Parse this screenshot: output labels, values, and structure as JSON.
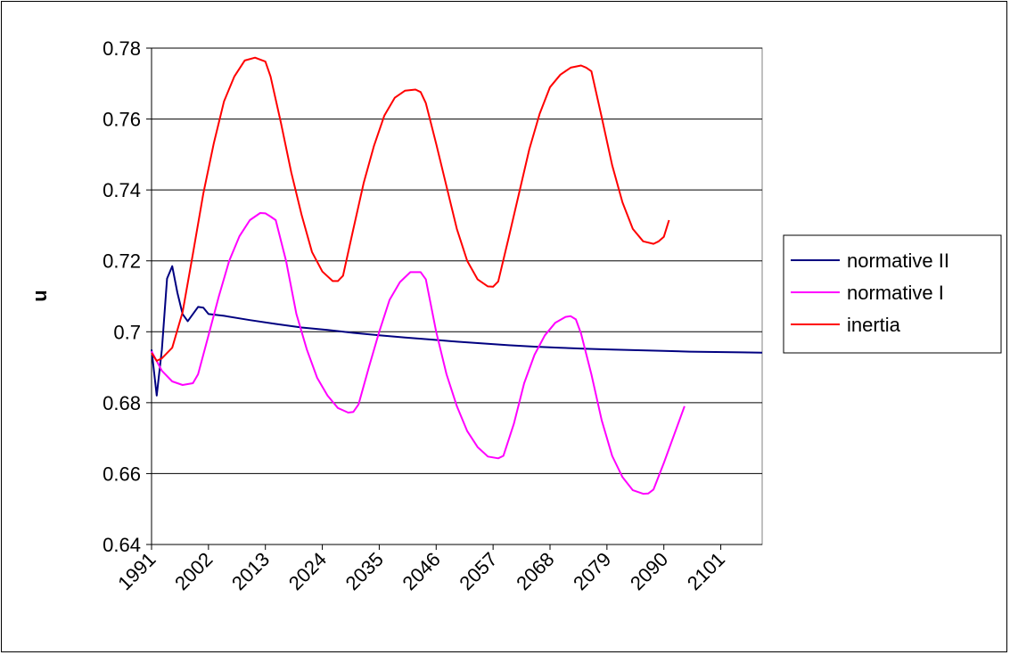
{
  "chart_data": {
    "type": "line",
    "title": "",
    "xlabel": "",
    "ylabel": "u",
    "ylim": [
      0.64,
      0.78
    ],
    "yticks": [
      "0.64",
      "0.66",
      "0.68",
      "0.7",
      "0.72",
      "0.74",
      "0.76",
      "0.78"
    ],
    "xticks": [
      "1991",
      "2002",
      "2013",
      "2024",
      "2035",
      "2046",
      "2057",
      "2068",
      "2079",
      "2090",
      "2101"
    ],
    "xrange": [
      1991,
      2109
    ],
    "grid": "horizontal",
    "legend_position": "right",
    "series": [
      {
        "name": "normative II",
        "color": "#000080",
        "points": [
          [
            1991,
            0.695
          ],
          [
            1992,
            0.682
          ],
          [
            1993,
            0.695
          ],
          [
            1994,
            0.715
          ],
          [
            1995,
            0.7185
          ],
          [
            1996,
            0.711
          ],
          [
            1997,
            0.705
          ],
          [
            1998,
            0.703
          ],
          [
            1999,
            0.705
          ],
          [
            2000,
            0.707
          ],
          [
            2001,
            0.7068
          ],
          [
            2002,
            0.705
          ],
          [
            2005,
            0.7045
          ],
          [
            2010,
            0.7033
          ],
          [
            2015,
            0.7022
          ],
          [
            2020,
            0.7012
          ],
          [
            2025,
            0.7005
          ],
          [
            2030,
            0.6997
          ],
          [
            2035,
            0.699
          ],
          [
            2040,
            0.6984
          ],
          [
            2045,
            0.6978
          ],
          [
            2050,
            0.6972
          ],
          [
            2055,
            0.6967
          ],
          [
            2060,
            0.6962
          ],
          [
            2065,
            0.6958
          ],
          [
            2070,
            0.6955
          ],
          [
            2075,
            0.6952
          ],
          [
            2080,
            0.695
          ],
          [
            2085,
            0.6948
          ],
          [
            2090,
            0.6946
          ],
          [
            2095,
            0.6944
          ],
          [
            2100,
            0.6943
          ],
          [
            2105,
            0.6942
          ],
          [
            2109,
            0.6941
          ]
        ]
      },
      {
        "name": "normative I",
        "color": "#ff00ff",
        "points": [
          [
            1991,
            0.6945
          ],
          [
            1993,
            0.689
          ],
          [
            1995,
            0.686
          ],
          [
            1997,
            0.685
          ],
          [
            1999,
            0.6855
          ],
          [
            2000,
            0.688
          ],
          [
            2002,
            0.699
          ],
          [
            2004,
            0.71
          ],
          [
            2006,
            0.72
          ],
          [
            2008,
            0.727
          ],
          [
            2010,
            0.7315
          ],
          [
            2012,
            0.7335
          ],
          [
            2013,
            0.7334
          ],
          [
            2014,
            0.7325
          ],
          [
            2015,
            0.7315
          ],
          [
            2017,
            0.72
          ],
          [
            2019,
            0.705
          ],
          [
            2021,
            0.695
          ],
          [
            2023,
            0.687
          ],
          [
            2025,
            0.682
          ],
          [
            2027,
            0.6785
          ],
          [
            2029,
            0.6772
          ],
          [
            2030,
            0.6774
          ],
          [
            2031,
            0.6795
          ],
          [
            2033,
            0.69
          ],
          [
            2035,
            0.7
          ],
          [
            2037,
            0.709
          ],
          [
            2039,
            0.714
          ],
          [
            2041,
            0.7168
          ],
          [
            2043,
            0.7168
          ],
          [
            2044,
            0.7148
          ],
          [
            2046,
            0.7
          ],
          [
            2048,
            0.688
          ],
          [
            2050,
            0.679
          ],
          [
            2052,
            0.672
          ],
          [
            2054,
            0.6675
          ],
          [
            2056,
            0.6648
          ],
          [
            2058,
            0.6643
          ],
          [
            2059,
            0.665
          ],
          [
            2061,
            0.674
          ],
          [
            2063,
            0.6855
          ],
          [
            2065,
            0.6935
          ],
          [
            2067,
            0.699
          ],
          [
            2069,
            0.7025
          ],
          [
            2071,
            0.7042
          ],
          [
            2072,
            0.7044
          ],
          [
            2073,
            0.7035
          ],
          [
            2074,
            0.6995
          ],
          [
            2076,
            0.688
          ],
          [
            2078,
            0.675
          ],
          [
            2080,
            0.665
          ],
          [
            2082,
            0.659
          ],
          [
            2084,
            0.6553
          ],
          [
            2086,
            0.6543
          ],
          [
            2087,
            0.6544
          ],
          [
            2088,
            0.6555
          ],
          [
            2090,
            0.663
          ],
          [
            2092,
            0.671
          ],
          [
            2094,
            0.679
          ]
        ]
      },
      {
        "name": "inertia",
        "color": "#ff0000",
        "points": [
          [
            1991,
            0.694
          ],
          [
            1992,
            0.6918
          ],
          [
            1993,
            0.6925
          ],
          [
            1995,
            0.6955
          ],
          [
            1997,
            0.7055
          ],
          [
            1999,
            0.722
          ],
          [
            2001,
            0.739
          ],
          [
            2003,
            0.753
          ],
          [
            2005,
            0.765
          ],
          [
            2007,
            0.772
          ],
          [
            2009,
            0.7765
          ],
          [
            2011,
            0.7773
          ],
          [
            2013,
            0.7762
          ],
          [
            2014,
            0.772
          ],
          [
            2016,
            0.759
          ],
          [
            2018,
            0.745
          ],
          [
            2020,
            0.733
          ],
          [
            2022,
            0.7225
          ],
          [
            2024,
            0.717
          ],
          [
            2026,
            0.7143
          ],
          [
            2027,
            0.7143
          ],
          [
            2028,
            0.7158
          ],
          [
            2030,
            0.729
          ],
          [
            2032,
            0.742
          ],
          [
            2034,
            0.7525
          ],
          [
            2036,
            0.761
          ],
          [
            2038,
            0.766
          ],
          [
            2040,
            0.768
          ],
          [
            2042,
            0.7683
          ],
          [
            2043,
            0.7676
          ],
          [
            2044,
            0.7645
          ],
          [
            2046,
            0.753
          ],
          [
            2048,
            0.741
          ],
          [
            2050,
            0.729
          ],
          [
            2052,
            0.72
          ],
          [
            2054,
            0.7148
          ],
          [
            2056,
            0.7128
          ],
          [
            2057,
            0.7127
          ],
          [
            2058,
            0.7142
          ],
          [
            2060,
            0.7265
          ],
          [
            2062,
            0.739
          ],
          [
            2064,
            0.7515
          ],
          [
            2066,
            0.7615
          ],
          [
            2068,
            0.769
          ],
          [
            2070,
            0.7725
          ],
          [
            2072,
            0.7745
          ],
          [
            2074,
            0.7751
          ],
          [
            2075,
            0.7745
          ],
          [
            2076,
            0.7735
          ],
          [
            2078,
            0.7605
          ],
          [
            2080,
            0.747
          ],
          [
            2082,
            0.7365
          ],
          [
            2084,
            0.729
          ],
          [
            2086,
            0.7255
          ],
          [
            2088,
            0.7248
          ],
          [
            2089,
            0.7255
          ],
          [
            2090,
            0.7268
          ],
          [
            2091,
            0.7315
          ]
        ]
      }
    ]
  }
}
